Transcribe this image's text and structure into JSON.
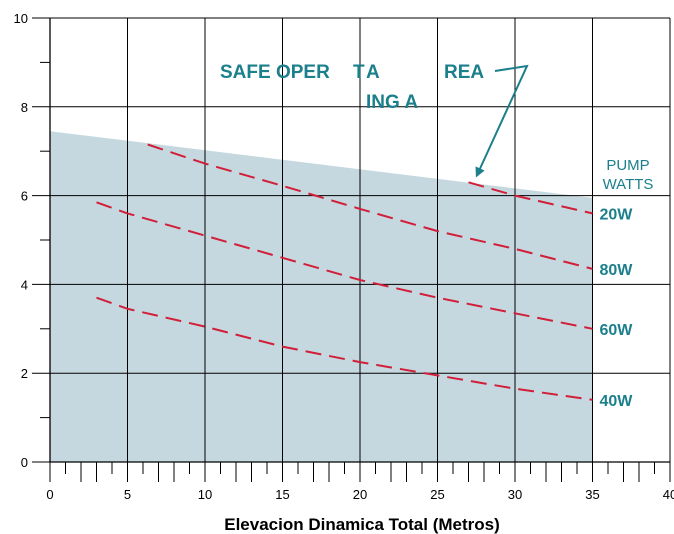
{
  "chart_data": {
    "type": "line",
    "xlabel": "Elevacion Dinamica Total (Metros)",
    "ylabel": "",
    "xlim": [
      0,
      40
    ],
    "ylim": [
      0,
      10
    ],
    "x_ticks": [
      0,
      5,
      10,
      15,
      20,
      25,
      30,
      35,
      40
    ],
    "y_ticks": [
      0,
      2,
      4,
      6,
      8,
      10
    ],
    "x_tick_labels": [
      "0",
      "5",
      "10",
      "15",
      "20",
      "25",
      "30",
      "35",
      "40"
    ],
    "y_tick_labels": [
      "0",
      "2",
      "4",
      "6",
      "8",
      "10"
    ],
    "grid": true,
    "safe_area": {
      "label_line1": "SAFE OPER",
      "label_line1b": "T",
      "label_line1c": "A",
      "label_line1d": "REA",
      "label_line2": "ING A",
      "boundary": {
        "x": [
          0,
          35
        ],
        "y": [
          7.45,
          5.95
        ]
      },
      "color": "#c6d8df"
    },
    "legend_title_line1": "PUMP",
    "legend_title_line2": "WATTS",
    "series_color": "#d11f3a",
    "label_color": "#1b7f8c",
    "series": [
      {
        "name": "80W",
        "x": [
          6.3,
          10,
          15,
          20,
          25,
          30,
          35
        ],
        "y": [
          7.15,
          6.72,
          6.22,
          5.7,
          5.2,
          4.8,
          4.35
        ]
      },
      {
        "name": "60W",
        "x": [
          3,
          5,
          10,
          15,
          20,
          25,
          30,
          35
        ],
        "y": [
          5.85,
          5.6,
          5.1,
          4.6,
          4.1,
          3.7,
          3.35,
          3.0
        ]
      },
      {
        "name": "40W",
        "x": [
          3,
          5,
          10,
          15,
          20,
          25,
          30,
          35
        ],
        "y": [
          3.7,
          3.45,
          3.05,
          2.6,
          2.25,
          1.95,
          1.65,
          1.4
        ]
      },
      {
        "name": "20W",
        "x": [
          27,
          30,
          35
        ],
        "y": [
          6.3,
          6.0,
          5.6
        ]
      }
    ]
  }
}
